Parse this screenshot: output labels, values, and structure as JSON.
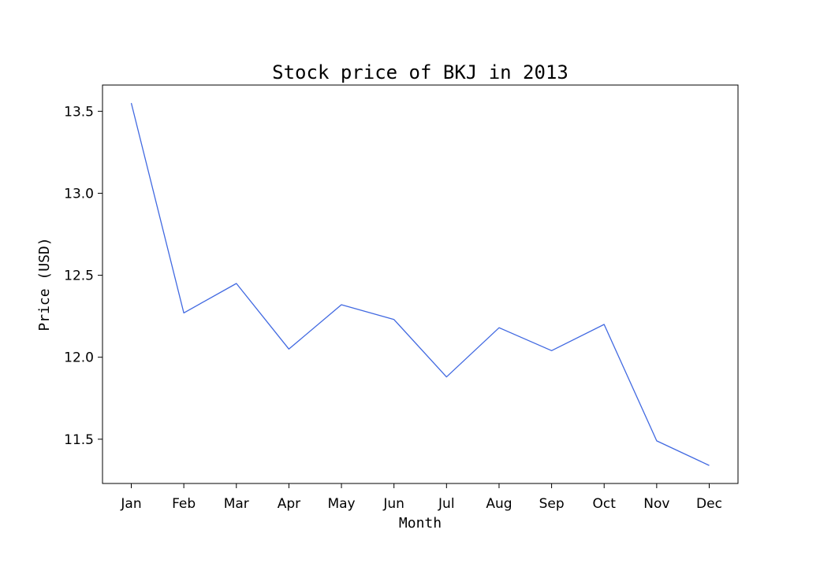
{
  "chart_data": {
    "type": "line",
    "title": "Stock price of BKJ in 2013",
    "xlabel": "Month",
    "ylabel": "Price (USD)",
    "categories": [
      "Jan",
      "Feb",
      "Mar",
      "Apr",
      "May",
      "Jun",
      "Jul",
      "Aug",
      "Sep",
      "Oct",
      "Nov",
      "Dec"
    ],
    "series": [
      {
        "values": [
          13.55,
          12.27,
          12.45,
          12.05,
          12.32,
          12.23,
          11.88,
          12.18,
          12.04,
          12.2,
          11.49,
          11.34
        ]
      }
    ],
    "yticks": [
      11.5,
      12.0,
      12.5,
      13.0,
      13.5
    ],
    "ytick_labels": [
      "11.5",
      "12.0",
      "12.5",
      "13.0",
      "13.5"
    ],
    "ylim": [
      11.23,
      13.66
    ],
    "grid": false,
    "legend": "none",
    "line_color": "#4169e1"
  }
}
